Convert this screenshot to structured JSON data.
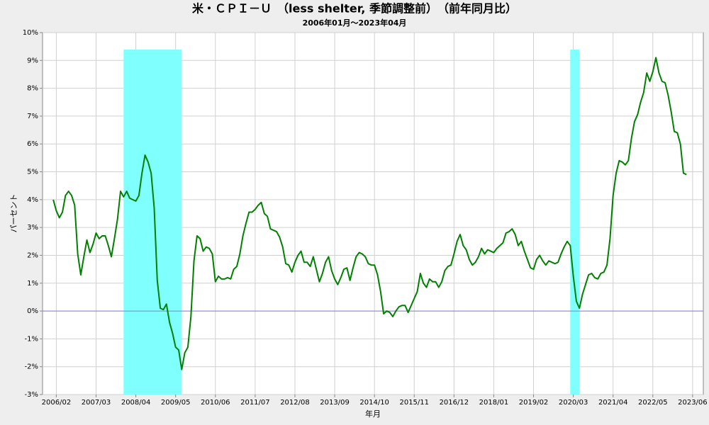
{
  "chart_data": {
    "type": "line",
    "title": "米・ＣＰＩ－Ｕ　（less shelter, 季節調整前）　（前年同月比）",
    "subtitle": "2006年01月～2023年04月",
    "x_label": "年月",
    "y_label": "パーセント",
    "categories": [
      null,
      "2006/02",
      null,
      null,
      null,
      null,
      null,
      null,
      null,
      null,
      null,
      null,
      null,
      null,
      "2007/03",
      null,
      null,
      null,
      null,
      null,
      null,
      null,
      null,
      null,
      null,
      null,
      null,
      "2008/04",
      null,
      null,
      null,
      null,
      null,
      null,
      null,
      null,
      null,
      null,
      null,
      null,
      "2009/05",
      null,
      null,
      null,
      null,
      null,
      null,
      null,
      null,
      null,
      null,
      null,
      null,
      "2010/06",
      null,
      null,
      null,
      null,
      null,
      null,
      null,
      null,
      null,
      null,
      null,
      null,
      "2011/07",
      null,
      null,
      null,
      null,
      null,
      null,
      null,
      null,
      null,
      null,
      null,
      null,
      "2012/08",
      null,
      null,
      null,
      null,
      null,
      null,
      null,
      null,
      null,
      null,
      null,
      null,
      "2013/09",
      null,
      null,
      null,
      null,
      null,
      null,
      null,
      null,
      null,
      null,
      null,
      null,
      "2014/10",
      null,
      null,
      null,
      null,
      null,
      null,
      null,
      null,
      null,
      null,
      null,
      null,
      "2015/11",
      null,
      null,
      null,
      null,
      null,
      null,
      null,
      null,
      null,
      null,
      null,
      null,
      "2016/12",
      null,
      null,
      null,
      null,
      null,
      null,
      null,
      null,
      null,
      null,
      null,
      null,
      "2018/01",
      null,
      null,
      null,
      null,
      null,
      null,
      null,
      null,
      null,
      null,
      null,
      null,
      "2019/02",
      null,
      null,
      null,
      null,
      null,
      null,
      null,
      null,
      null,
      null,
      null,
      null,
      "2020/03",
      null,
      null,
      null,
      null,
      null,
      null,
      null,
      null,
      null,
      null,
      null,
      null,
      "2021/04",
      null,
      null,
      null,
      null,
      null,
      null,
      null,
      null,
      null,
      null,
      null,
      null,
      "2022/05",
      null,
      null,
      null,
      null,
      null,
      null,
      null,
      null,
      null,
      null,
      null,
      null,
      "2023/06"
    ],
    "series": [
      {
        "color": "#008000",
        "values": [
          4.0,
          3.6,
          3.35,
          3.55,
          4.15,
          4.3,
          4.15,
          3.8,
          2.05,
          1.3,
          1.95,
          2.55,
          2.1,
          2.4,
          2.8,
          2.6,
          2.7,
          2.7,
          2.35,
          1.95,
          2.6,
          3.3,
          4.3,
          4.1,
          4.3,
          4.05,
          4.0,
          3.95,
          4.15,
          4.95,
          5.6,
          5.35,
          4.95,
          3.7,
          1.1,
          0.1,
          0.05,
          0.25,
          -0.4,
          -0.8,
          -1.3,
          -1.4,
          -2.1,
          -1.5,
          -1.3,
          -0.2,
          1.8,
          2.7,
          2.6,
          2.15,
          2.3,
          2.25,
          2.05,
          1.05,
          1.25,
          1.15,
          1.15,
          1.2,
          1.15,
          1.5,
          1.6,
          2.05,
          2.7,
          3.15,
          3.55,
          3.55,
          3.65,
          3.8,
          3.9,
          3.5,
          3.4,
          2.95,
          2.9,
          2.85,
          2.65,
          2.3,
          1.7,
          1.65,
          1.4,
          1.75,
          2.0,
          2.15,
          1.75,
          1.75,
          1.6,
          1.95,
          1.5,
          1.05,
          1.35,
          1.75,
          1.95,
          1.45,
          1.15,
          0.95,
          1.2,
          1.5,
          1.55,
          1.1,
          1.55,
          1.95,
          2.1,
          2.05,
          1.95,
          1.7,
          1.65,
          1.65,
          1.3,
          0.7,
          -0.1,
          0.0,
          -0.05,
          -0.2,
          0.0,
          0.15,
          0.2,
          0.2,
          -0.05,
          0.2,
          0.45,
          0.7,
          1.35,
          1.0,
          0.85,
          1.15,
          1.05,
          1.05,
          0.85,
          1.05,
          1.45,
          1.6,
          1.65,
          2.05,
          2.5,
          2.75,
          2.35,
          2.2,
          1.85,
          1.65,
          1.75,
          1.95,
          2.25,
          2.05,
          2.2,
          2.15,
          2.1,
          2.25,
          2.35,
          2.45,
          2.8,
          2.85,
          2.95,
          2.75,
          2.35,
          2.5,
          2.15,
          1.85,
          1.55,
          1.5,
          1.85,
          2.0,
          1.8,
          1.65,
          1.8,
          1.75,
          1.7,
          1.75,
          2.05,
          2.3,
          2.5,
          2.35,
          1.25,
          0.35,
          0.1,
          0.6,
          0.95,
          1.3,
          1.35,
          1.2,
          1.15,
          1.35,
          1.4,
          1.65,
          2.6,
          4.15,
          4.95,
          5.4,
          5.35,
          5.25,
          5.4,
          6.2,
          6.8,
          7.05,
          7.5,
          7.85,
          8.55,
          8.25,
          8.6,
          9.1,
          8.55,
          8.25,
          8.2,
          7.75,
          7.15,
          6.45,
          6.4,
          6.0,
          4.95,
          4.9,
          null,
          null
        ]
      }
    ],
    "shaded_periods": [
      {
        "start": "2007/12",
        "end": "2009/06"
      },
      {
        "start": "2020/02",
        "end": "2020/04"
      }
    ],
    "shade_color": "#80ffff",
    "zero_line_color": "#8080d0",
    "ylim": [
      -3,
      10
    ],
    "yticks": [
      {
        "value": -3,
        "label": "-3%"
      },
      {
        "value": -2,
        "label": "-2%"
      },
      {
        "value": -1,
        "label": "-1%"
      },
      {
        "value": 0,
        "label": "0%"
      },
      {
        "value": 1,
        "label": "1%"
      },
      {
        "value": 2,
        "label": "2%"
      },
      {
        "value": 3,
        "label": "3%"
      },
      {
        "value": 4,
        "label": "4%"
      },
      {
        "value": 5,
        "label": "5%"
      },
      {
        "value": 6,
        "label": "6%"
      },
      {
        "value": 7,
        "label": "7%"
      },
      {
        "value": 8,
        "label": "8%"
      },
      {
        "value": 9,
        "label": "9%"
      },
      {
        "value": 10,
        "label": "10%"
      }
    ],
    "grid": true
  }
}
